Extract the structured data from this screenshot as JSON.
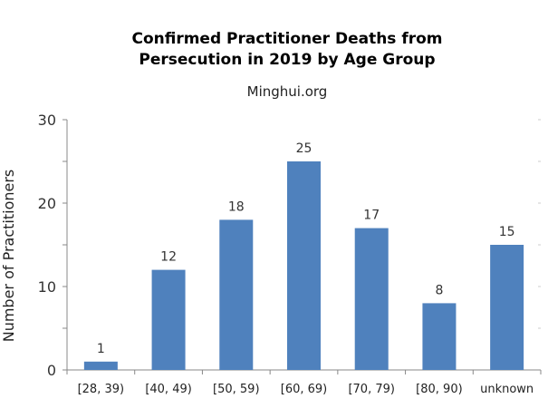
{
  "chart_data": {
    "type": "bar",
    "title_line1": "Confirmed Practitioner Deaths from",
    "title_line2": "Persecution in 2019 by Age Group",
    "subtitle": "Minghui.org",
    "xlabel": "",
    "ylabel": "Number of Practitioners",
    "categories": [
      "[28, 39)",
      "[40, 49)",
      "[50, 59)",
      "[60, 69)",
      "[70, 79)",
      "[80, 90)",
      "unknown"
    ],
    "values": [
      1,
      12,
      18,
      25,
      17,
      8,
      15
    ],
    "ylim": [
      0,
      30
    ],
    "yticks": [
      0,
      10,
      20,
      30
    ],
    "grid": false,
    "legend": "none",
    "bar_color": "#4f81bd",
    "axis_color": "#888888"
  }
}
